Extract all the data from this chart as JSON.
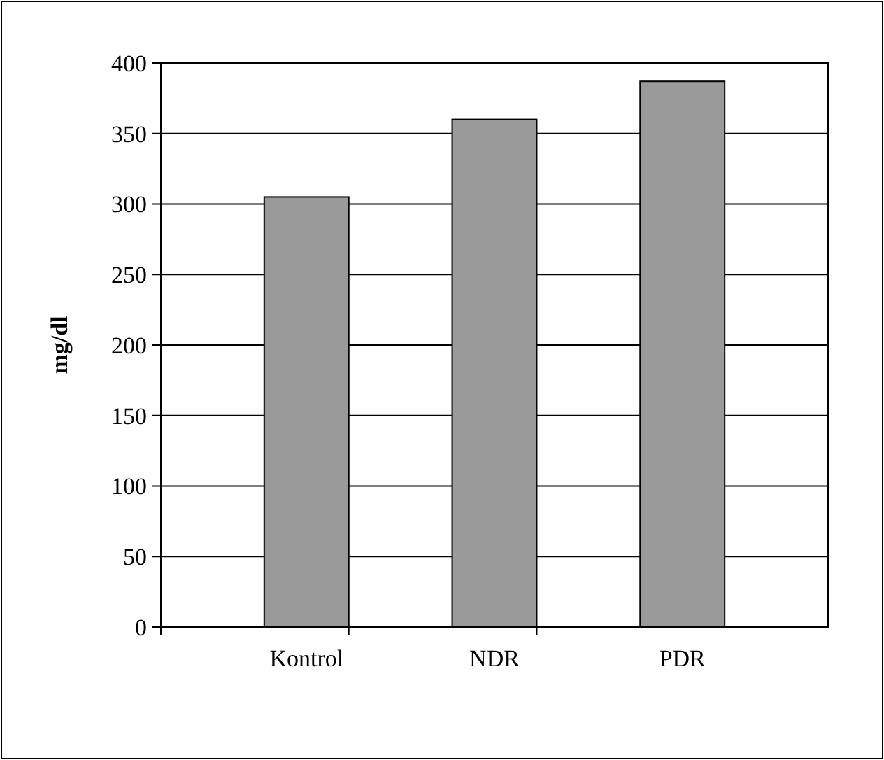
{
  "chart_data": {
    "type": "bar",
    "ylabel": "mg/dl",
    "categories": [
      "Kontrol",
      "NDR",
      "PDR"
    ],
    "values": [
      305,
      360,
      387
    ],
    "color": "#9a9a9a",
    "ylim": [
      0,
      400
    ],
    "yticks": [
      0,
      50,
      100,
      150,
      200,
      250,
      300,
      350,
      400
    ],
    "grid": "y"
  }
}
